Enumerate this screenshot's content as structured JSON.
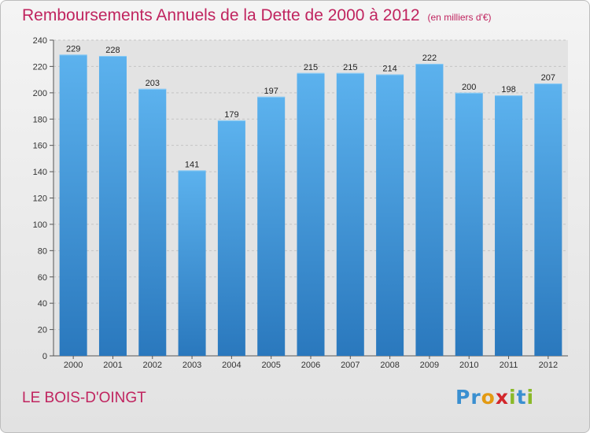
{
  "header": {
    "title": "Remboursements Annuels de la Dette de 2000 à 2012",
    "unit": "(en milliers d'€)"
  },
  "footer": {
    "place": "LE BOIS-D'OINGT",
    "logo_letters": [
      {
        "char": "P",
        "color": "#3a8fd0"
      },
      {
        "char": "r",
        "color": "#3a8fd0"
      },
      {
        "char": "o",
        "color": "#e39a12"
      },
      {
        "char": "x",
        "color": "#d2262b"
      },
      {
        "char": "i",
        "color": "#8ab928"
      },
      {
        "char": "t",
        "color": "#3a8fd0"
      },
      {
        "char": "i",
        "color": "#8ab928"
      }
    ]
  },
  "chart_data": {
    "type": "bar",
    "title": "Remboursements Annuels de la Dette de 2000 à 2012",
    "unit": "(en milliers d'€)",
    "categories": [
      "2000",
      "2001",
      "2002",
      "2003",
      "2004",
      "2005",
      "2006",
      "2007",
      "2008",
      "2009",
      "2010",
      "2011",
      "2012"
    ],
    "values": [
      229,
      228,
      203,
      141,
      179,
      197,
      215,
      215,
      214,
      222,
      200,
      198,
      207
    ],
    "ylim": [
      0,
      240
    ],
    "yticks": [
      0,
      20,
      40,
      60,
      80,
      100,
      120,
      140,
      160,
      180,
      200,
      220,
      240
    ],
    "grid": true,
    "bar_color": "#4a9fe0"
  }
}
